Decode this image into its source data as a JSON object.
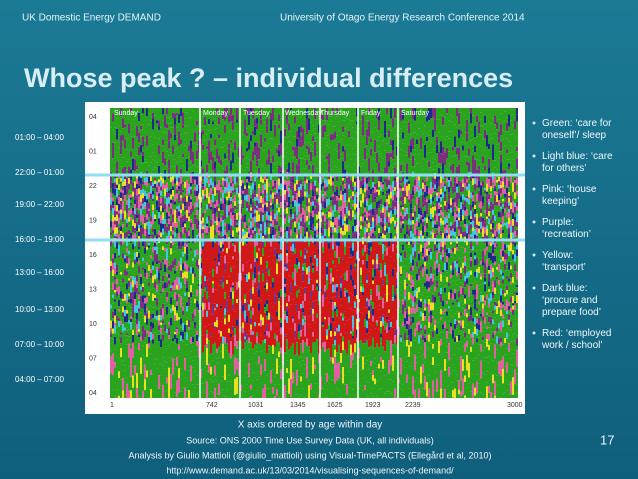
{
  "header": {
    "left": "UK Domestic Energy DEMAND",
    "right": "University of Otago Energy Research Conference 2014"
  },
  "title": "Whose peak ? – individual differences",
  "figure": {
    "days": [
      "Sunday",
      "Monday",
      "Tuesday",
      "Wednesday",
      "Thursday",
      "Friday",
      "Saturday"
    ],
    "x_labels": [
      "1",
      "742",
      "1031",
      "1345",
      "1625",
      "1923",
      "2239",
      "3000"
    ],
    "y_labels": [
      "04",
      "01",
      "22",
      "19",
      "16",
      "13",
      "10",
      "07",
      "04"
    ],
    "time_bands": [
      "01:00 – 04:00",
      "22:00 – 01:00",
      "19:00 – 22:00",
      "16:00 – 19:00",
      "13:00 – 16:00",
      "10:00 – 13:00",
      "07:00 – 10:00",
      "04:00 – 07:00"
    ],
    "caption": "X axis ordered by age within day"
  },
  "legend": [
    "Green: ‘care for oneself’/ sleep",
    "Light blue: ‘care for others’",
    "Pink: ‘house keeping’",
    "Purple: ‘recreation’",
    "Yellow: ‘transport’",
    "Dark blue: ‘procure and prepare food’",
    "Red: ‘employed work / school’"
  ],
  "source": [
    "Source: ONS 2000 Time Use Survey Data (UK, all individuals)",
    "Analysis by Giulio Mattioli (@giulio_mattioli) using Visual-TimePACTS (Ellegård et al, 2010)",
    "http://www.demand.ac.uk/13/03/2014/visualising-sequences-of-demand/"
  ],
  "page_number": "17"
}
